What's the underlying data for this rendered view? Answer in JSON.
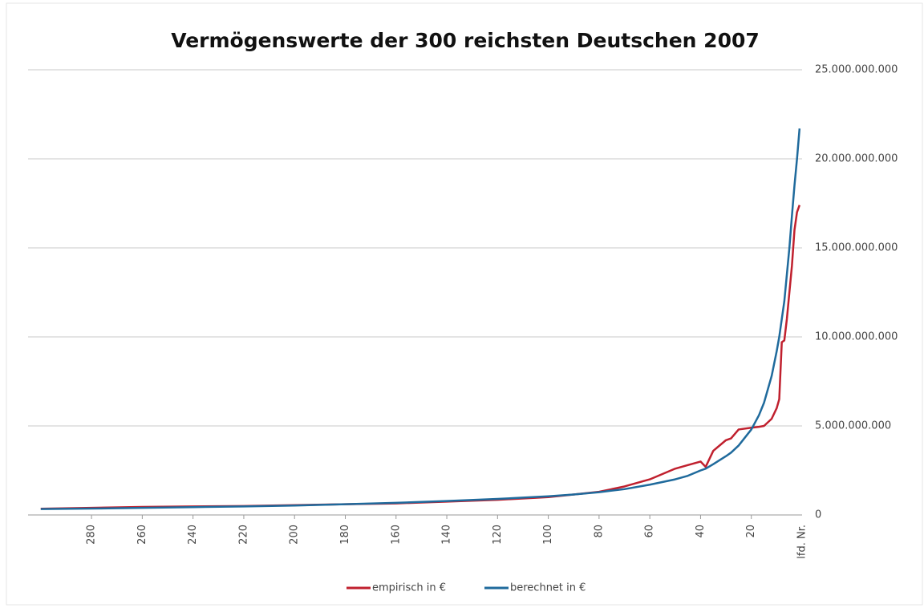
{
  "chart_data": {
    "type": "line",
    "title": "Vermögenswerte der 300 reichsten Deutschen 2007",
    "xlabel": "lfd. Nr.",
    "x": [
      300,
      280,
      260,
      240,
      220,
      200,
      180,
      160,
      140,
      120,
      100,
      90,
      80,
      70,
      60,
      50,
      45,
      40,
      38,
      35,
      30,
      28,
      25,
      20,
      17,
      15,
      12,
      10,
      9,
      8,
      7,
      6,
      5,
      4,
      3,
      2,
      1
    ],
    "series": [
      {
        "name": "empirisch in €",
        "color": "#c0202e",
        "values": [
          350000000,
          400000000,
          450000000,
          480000000,
          500000000,
          550000000,
          600000000,
          650000000,
          750000000,
          850000000,
          1000000000,
          1150000000,
          1300000000,
          1600000000,
          2000000000,
          2600000000,
          2800000000,
          3000000000,
          2700000000,
          3600000000,
          4200000000,
          4300000000,
          4800000000,
          4900000000,
          4950000000,
          5000000000,
          5400000000,
          6000000000,
          6500000000,
          9700000000,
          9800000000,
          11000000000,
          12500000000,
          14000000000,
          16000000000,
          17000000000,
          17400000000
        ]
      },
      {
        "name": "berechnet in €",
        "color": "#1f6a9c",
        "values": [
          330000000,
          360000000,
          400000000,
          440000000,
          480000000,
          530000000,
          600000000,
          680000000,
          780000000,
          900000000,
          1050000000,
          1150000000,
          1280000000,
          1450000000,
          1700000000,
          2000000000,
          2200000000,
          2500000000,
          2600000000,
          2850000000,
          3300000000,
          3500000000,
          3900000000,
          4800000000,
          5600000000,
          6300000000,
          7800000000,
          9200000000,
          10000000000,
          11000000000,
          12000000000,
          13500000000,
          15000000000,
          16800000000,
          18500000000,
          20000000000,
          21700000000
        ]
      }
    ],
    "xlim": [
      305,
      0
    ],
    "xticks": [
      280,
      260,
      240,
      220,
      200,
      180,
      160,
      140,
      120,
      100,
      80,
      60,
      40,
      20
    ],
    "ylim": [
      0,
      25000000000
    ],
    "yticks": [
      0,
      {
        "value": 5000000000,
        "label": "5.000.000.000"
      },
      {
        "value": 10000000000,
        "label": "10.000.000.000"
      },
      {
        "value": 15000000000,
        "label": "15.000.000.000"
      },
      {
        "value": 20000000000,
        "label": "20.000.000.000"
      },
      {
        "value": 25000000000,
        "label": "25.000.000.000"
      }
    ],
    "grid": true
  }
}
